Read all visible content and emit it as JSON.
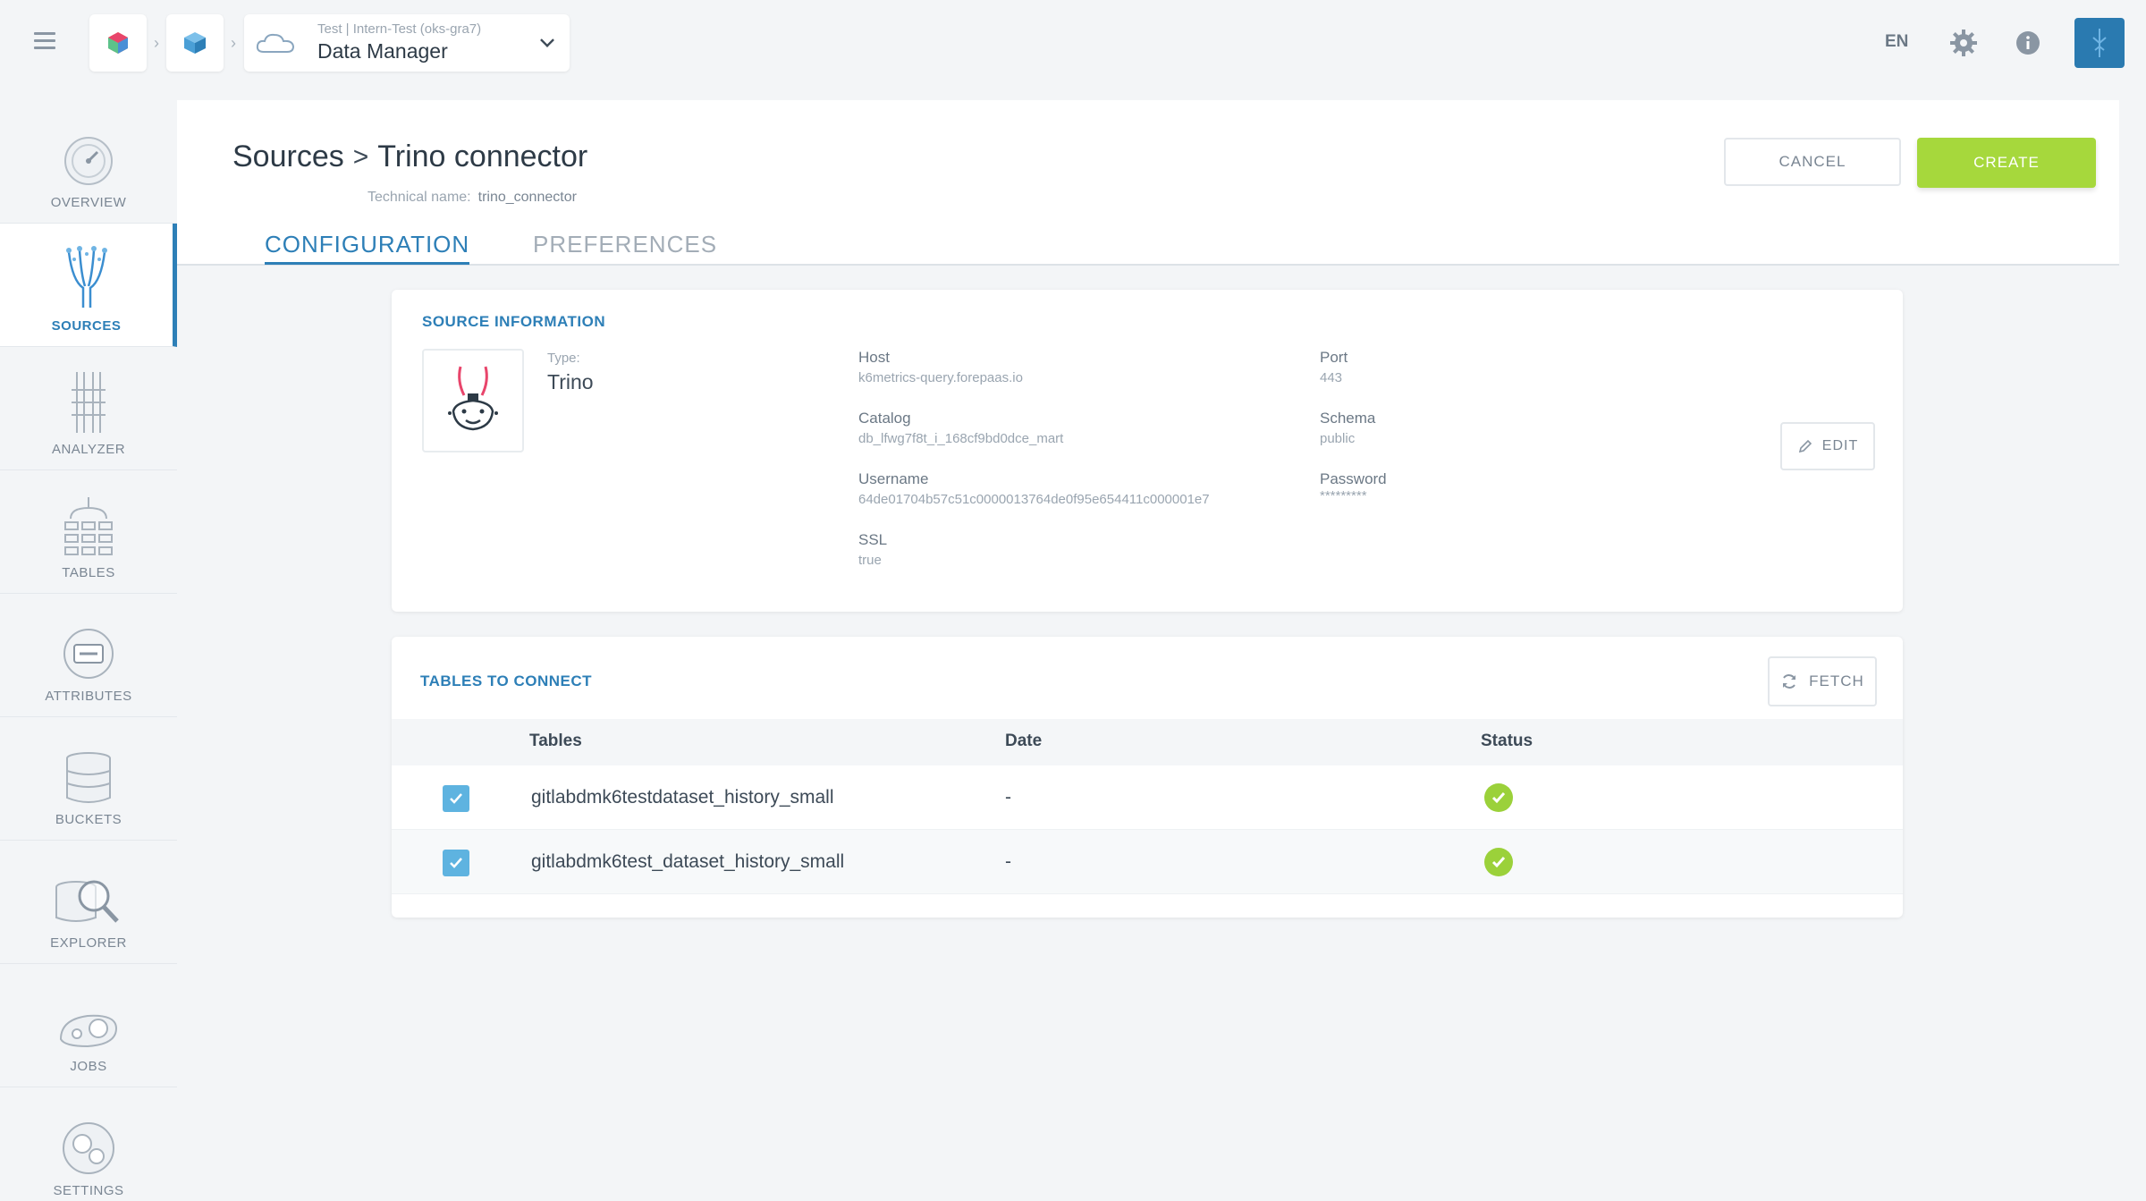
{
  "app": {
    "project_sub": "Test  |  Intern-Test (oks-gra7)",
    "project_title": "Data Manager",
    "language": "EN"
  },
  "sidebar": {
    "items": [
      {
        "label": "OVERVIEW",
        "icon": "gauge-icon"
      },
      {
        "label": "SOURCES",
        "icon": "sources-icon",
        "active": true
      },
      {
        "label": "ANALYZER",
        "icon": "analyzer-icon"
      },
      {
        "label": "TABLES",
        "icon": "tables-icon"
      },
      {
        "label": "ATTRIBUTES",
        "icon": "attributes-icon"
      },
      {
        "label": "BUCKETS",
        "icon": "buckets-icon"
      },
      {
        "label": "EXPLORER",
        "icon": "explorer-icon"
      },
      {
        "label": "JOBS",
        "icon": "jobs-icon"
      },
      {
        "label": "SETTINGS",
        "icon": "settings-icon"
      }
    ]
  },
  "header": {
    "breadcrumb_root": "Sources",
    "breadcrumb_current": "Trino connector",
    "technical_name_label": "Technical name:",
    "technical_name_value": "trino_connector",
    "cancel_label": "CANCEL",
    "create_label": "CREATE",
    "tabs": [
      {
        "label": "CONFIGURATION",
        "active": true
      },
      {
        "label": "PREFERENCES",
        "active": false
      }
    ]
  },
  "source_info": {
    "title": "SOURCE INFORMATION",
    "type_label": "Type:",
    "type_value": "Trino",
    "host_label": "Host",
    "host_value": "k6metrics-query.forepaas.io",
    "port_label": "Port",
    "port_value": "443",
    "catalog_label": "Catalog",
    "catalog_value": "db_lfwg7f8t_i_168cf9bd0dce_mart",
    "schema_label": "Schema",
    "schema_value": "public",
    "username_label": "Username",
    "username_value": "64de01704b57c51c0000013764de0f95e654411c000001e7",
    "password_label": "Password",
    "password_value": "*********",
    "ssl_label": "SSL",
    "ssl_value": "true",
    "edit_label": "EDIT"
  },
  "tables_panel": {
    "title": "TABLES TO CONNECT",
    "fetch_label": "FETCH",
    "columns": [
      "Tables",
      "Date",
      "Status"
    ],
    "rows": [
      {
        "table": "gitlabdmk6testdataset_history_small",
        "date": "-",
        "checked": true,
        "status": "ok"
      },
      {
        "table": "gitlabdmk6test_dataset_history_small",
        "date": "-",
        "checked": true,
        "status": "ok"
      }
    ]
  },
  "colors": {
    "accent": "#2d7fb7",
    "create": "#a6d83c",
    "checkbox": "#5eb3e0",
    "status_ok": "#9bd13a"
  }
}
